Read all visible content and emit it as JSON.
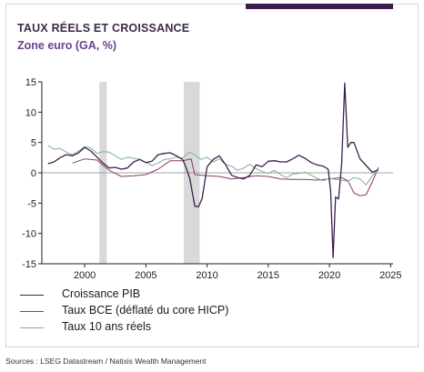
{
  "header": {
    "title": "TAUX RÉELS ET CROISSANCE",
    "subtitle": "Zone euro (GA, %)"
  },
  "footer": {
    "source": "Sources : LSEG Datastream / Natixis Wealth Management"
  },
  "colors": {
    "accent_bar": "#3b1f4f",
    "shading": "#d9d9d9",
    "zero_line": "#888888"
  },
  "chart_data": {
    "type": "line",
    "title": "TAUX RÉELS ET CROISSANCE",
    "subtitle": "Zone euro (GA, %)",
    "xlabel": "",
    "ylabel": "",
    "xlim": [
      1996.5,
      2025.2
    ],
    "ylim": [
      -15,
      15
    ],
    "x_ticks": [
      2000,
      2005,
      2010,
      2015,
      2020,
      2025
    ],
    "y_ticks": [
      15,
      10,
      5,
      0,
      -5,
      -10,
      -15
    ],
    "x_tick_labels": [
      "2000",
      "2005",
      "2010",
      "2015",
      "2020",
      "2025"
    ],
    "y_tick_labels": [
      "15",
      "10",
      "5",
      "0",
      "-5",
      "-10",
      "-15"
    ],
    "grid": false,
    "legend_position": "bottom",
    "shaded_periods": [
      [
        2001.2,
        2001.8
      ],
      [
        2008.1,
        2009.4
      ]
    ],
    "series": [
      {
        "name": "Croissance PIB",
        "color": "#3b1f4f",
        "x": [
          1997.0,
          1997.5,
          1998.0,
          1998.5,
          1999.0,
          1999.5,
          2000.0,
          2000.5,
          2001.0,
          2001.5,
          2002.0,
          2002.5,
          2003.0,
          2003.5,
          2004.0,
          2004.5,
          2005.0,
          2005.5,
          2006.0,
          2006.5,
          2007.0,
          2007.5,
          2008.0,
          2008.3,
          2008.6,
          2009.0,
          2009.3,
          2009.6,
          2010.0,
          2010.5,
          2011.0,
          2011.5,
          2012.0,
          2012.5,
          2013.0,
          2013.5,
          2014.0,
          2014.5,
          2015.0,
          2015.5,
          2016.0,
          2016.5,
          2017.0,
          2017.5,
          2018.0,
          2018.5,
          2019.0,
          2019.5,
          2019.9,
          2020.1,
          2020.3,
          2020.5,
          2020.75,
          2021.0,
          2021.25,
          2021.5,
          2021.75,
          2022.0,
          2022.5,
          2023.0,
          2023.5,
          2024.0
        ],
        "values": [
          1.5,
          1.8,
          2.5,
          3.0,
          2.8,
          3.3,
          4.2,
          3.6,
          2.6,
          1.6,
          0.8,
          0.9,
          0.6,
          0.8,
          1.8,
          2.2,
          1.7,
          1.9,
          3.0,
          3.2,
          3.3,
          2.8,
          2.2,
          0.8,
          -1.0,
          -5.5,
          -5.6,
          -4.2,
          1.0,
          2.2,
          2.8,
          1.4,
          -0.4,
          -0.8,
          -1.0,
          -0.4,
          1.3,
          1.0,
          1.9,
          2.0,
          1.8,
          1.8,
          2.3,
          2.9,
          2.4,
          1.7,
          1.3,
          1.1,
          0.6,
          -3.0,
          -14.0,
          -4.0,
          -4.3,
          1.5,
          14.8,
          4.2,
          5.0,
          5.0,
          2.3,
          1.2,
          0.1,
          0.5
        ]
      },
      {
        "name": "Taux BCE (déflaté du core HICP)",
        "color": "#8a3a62",
        "x": [
          1999.0,
          2000.0,
          2001.0,
          2002.0,
          2003.0,
          2004.0,
          2005.0,
          2006.0,
          2007.0,
          2008.0,
          2008.7,
          2009.0,
          2010.0,
          2011.0,
          2012.0,
          2013.0,
          2014.0,
          2015.0,
          2016.0,
          2017.0,
          2018.0,
          2019.0,
          2020.0,
          2020.5,
          2021.0,
          2021.5,
          2022.0,
          2022.5,
          2023.0,
          2023.5,
          2024.0
        ],
        "values": [
          1.6,
          2.3,
          2.1,
          0.4,
          -0.6,
          -0.5,
          -0.3,
          0.6,
          2.0,
          2.0,
          2.3,
          -0.3,
          -0.5,
          -0.6,
          -1.0,
          -0.8,
          -0.5,
          -0.6,
          -1.0,
          -1.1,
          -1.1,
          -1.2,
          -1.0,
          -0.9,
          -0.8,
          -1.3,
          -3.3,
          -3.8,
          -3.6,
          -1.5,
          0.9
        ]
      },
      {
        "name": "Taux 10 ans réels",
        "color": "#7fae9a",
        "x": [
          1997.0,
          1997.5,
          1998.0,
          1998.5,
          1999.0,
          1999.5,
          2000.0,
          2000.5,
          2001.0,
          2001.5,
          2002.0,
          2002.5,
          2003.0,
          2003.5,
          2004.0,
          2004.5,
          2005.0,
          2005.5,
          2006.0,
          2006.5,
          2007.0,
          2007.5,
          2008.0,
          2008.5,
          2009.0,
          2009.5,
          2010.0,
          2010.5,
          2011.0,
          2011.5,
          2012.0,
          2012.5,
          2013.0,
          2013.5,
          2014.0,
          2014.5,
          2015.0,
          2015.5,
          2016.0,
          2016.5,
          2017.0,
          2017.5,
          2018.0,
          2018.5,
          2019.0,
          2019.5,
          2020.0,
          2020.5,
          2021.0,
          2021.5,
          2022.0,
          2022.5,
          2023.0,
          2023.5,
          2024.0
        ],
        "values": [
          4.5,
          3.9,
          4.0,
          3.4,
          3.0,
          3.6,
          4.3,
          4.1,
          3.2,
          3.5,
          3.4,
          2.8,
          2.2,
          2.6,
          2.4,
          2.2,
          1.7,
          1.2,
          1.6,
          2.2,
          2.3,
          2.6,
          2.4,
          3.4,
          3.0,
          2.2,
          2.6,
          1.8,
          2.3,
          1.4,
          1.1,
          0.4,
          0.8,
          1.4,
          0.7,
          0.2,
          -0.1,
          0.4,
          -0.3,
          -0.8,
          -0.2,
          -0.1,
          0.1,
          -0.4,
          -0.9,
          -1.3,
          -0.9,
          -1.1,
          -1.2,
          -1.4,
          -0.8,
          -1.0,
          -2.0,
          -0.5,
          0.6
        ]
      }
    ]
  }
}
